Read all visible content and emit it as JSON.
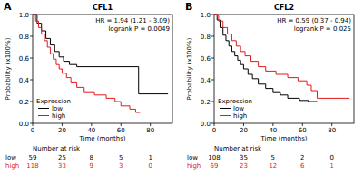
{
  "chart_data": [
    {
      "type": "line",
      "line_style": "step",
      "label": "A",
      "title": "CFL1",
      "annotations": [
        "HR = 1.94 (1.21 - 3.09)",
        "logrank P = 0.0049"
      ],
      "x_label": "Time (months)",
      "y_label": "Probability (x100%)",
      "xlim": [
        0,
        95
      ],
      "xticks": [
        0,
        20,
        40,
        60,
        80
      ],
      "ylim": [
        0,
        1
      ],
      "yticks": [
        {
          "value": 0,
          "label": "0.0"
        },
        {
          "value": 0.2,
          "label": "0.2"
        },
        {
          "value": 0.4,
          "label": "0.4"
        },
        {
          "value": 0.6,
          "label": "0.6"
        },
        {
          "value": 0.8,
          "label": "0.8"
        },
        {
          "value": 1,
          "label": "1.0"
        }
      ],
      "legend": "bottom-left",
      "legend_title": "Expression",
      "series": [
        {
          "name": "low",
          "color": "#000000",
          "x": [
            0,
            3,
            6,
            9,
            12,
            15,
            18,
            21,
            25,
            30,
            72,
            92
          ],
          "values": [
            1,
            0.92,
            0.85,
            0.78,
            0.72,
            0.66,
            0.61,
            0.57,
            0.54,
            0.52,
            0.27,
            0.27
          ]
        },
        {
          "name": "high",
          "color": "#e31a1c",
          "x": [
            0,
            2,
            4,
            6,
            8,
            10,
            12,
            14,
            16,
            18,
            20,
            23,
            26,
            30,
            35,
            42,
            50,
            56,
            60,
            66,
            70,
            73
          ],
          "values": [
            1,
            0.94,
            0.88,
            0.82,
            0.76,
            0.7,
            0.64,
            0.59,
            0.54,
            0.5,
            0.46,
            0.42,
            0.38,
            0.33,
            0.29,
            0.26,
            0.23,
            0.2,
            0.16,
            0.13,
            0.1,
            0.1
          ]
        }
      ],
      "risk_table": {
        "title": "Number at risk",
        "rows": [
          {
            "name": "low",
            "values": [
              59,
              25,
              8,
              5,
              1
            ]
          },
          {
            "name": "high",
            "values": [
              118,
              33,
              9,
              3,
              0
            ]
          }
        ]
      }
    },
    {
      "type": "line",
      "line_style": "step",
      "label": "B",
      "title": "CFL2",
      "annotations": [
        "HR = 0.59 (0.37 - 0.94)",
        "logrank P = 0.025"
      ],
      "x_label": "Time (months)",
      "y_label": "Probability (x100%)",
      "xlim": [
        0,
        95
      ],
      "xticks": [
        0,
        20,
        40,
        60,
        80
      ],
      "ylim": [
        0,
        1
      ],
      "yticks": [
        {
          "value": 0,
          "label": "0.0"
        },
        {
          "value": 0.2,
          "label": "0.2"
        },
        {
          "value": 0.4,
          "label": "0.4"
        },
        {
          "value": 0.6,
          "label": "0.6"
        },
        {
          "value": 0.8,
          "label": "0.8"
        },
        {
          "value": 1,
          "label": "1.0"
        }
      ],
      "legend": "bottom-left",
      "legend_title": "Expression",
      "series": [
        {
          "name": "low",
          "color": "#000000",
          "x": [
            0,
            2,
            4,
            6,
            8,
            10,
            12,
            14,
            16,
            18,
            20,
            23,
            26,
            30,
            35,
            40,
            45,
            50,
            58,
            64,
            70
          ],
          "values": [
            1,
            0.95,
            0.88,
            0.81,
            0.76,
            0.71,
            0.66,
            0.62,
            0.58,
            0.54,
            0.5,
            0.45,
            0.41,
            0.36,
            0.32,
            0.29,
            0.26,
            0.23,
            0.21,
            0.2,
            0.2
          ]
        },
        {
          "name": "high",
          "color": "#e31a1c",
          "x": [
            0,
            3,
            6,
            9,
            12,
            15,
            18,
            21,
            25,
            30,
            35,
            42,
            50,
            57,
            63,
            66,
            70,
            92
          ],
          "values": [
            1,
            0.94,
            0.88,
            0.82,
            0.76,
            0.71,
            0.66,
            0.62,
            0.57,
            0.52,
            0.48,
            0.45,
            0.42,
            0.39,
            0.35,
            0.3,
            0.23,
            0.23
          ]
        }
      ],
      "risk_table": {
        "title": "Number at risk",
        "rows": [
          {
            "name": "low",
            "values": [
              108,
              35,
              5,
              2,
              0
            ]
          },
          {
            "name": "high",
            "values": [
              69,
              23,
              12,
              6,
              1
            ]
          }
        ]
      }
    }
  ]
}
